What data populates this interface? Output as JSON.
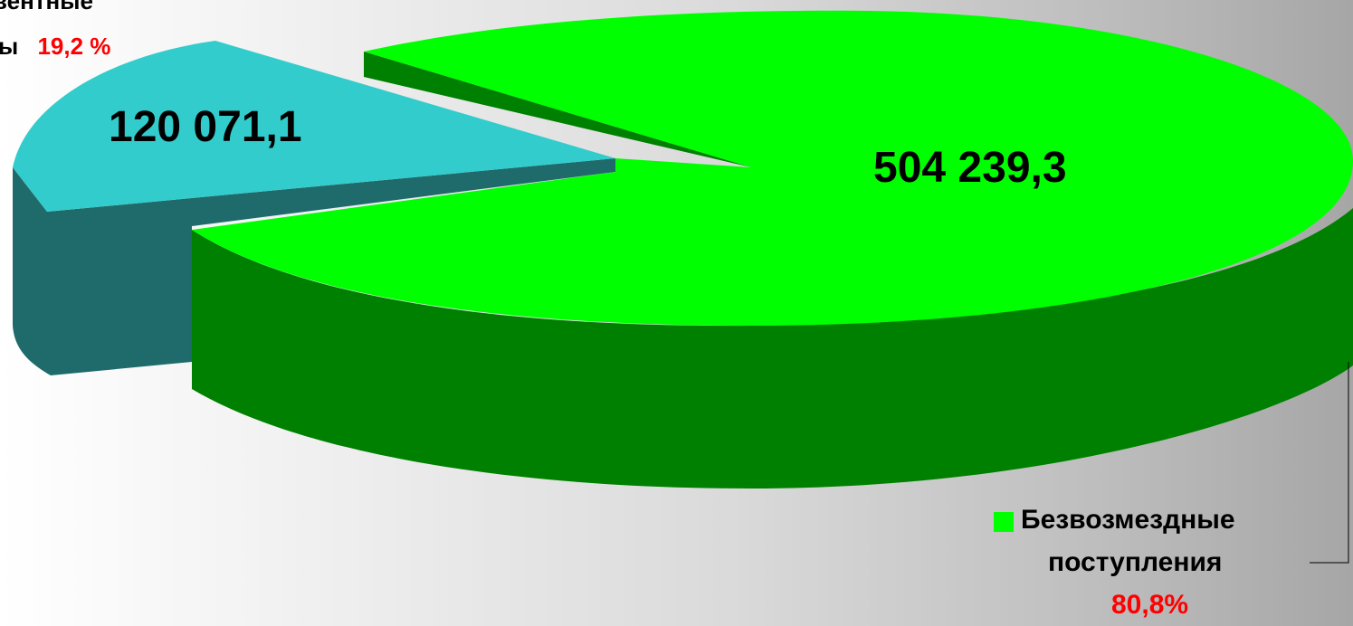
{
  "chart_data": {
    "type": "pie",
    "style": "3d-exploded",
    "categories": [
      "Безвозмездные поступления",
      "…ые …ы"
    ],
    "values": [
      504239.3,
      120071.1
    ],
    "value_labels": [
      "504 239,3",
      "120 071,1"
    ],
    "percent_labels": [
      "80,8%",
      "19,2 %"
    ],
    "colors": {
      "green_top": "#00ff00",
      "green_side": "#008000",
      "teal_top": "#33cccc",
      "teal_side": "#1f6b6b"
    }
  },
  "labels": {
    "green_value": "504 239,3",
    "teal_value": "120 071,1",
    "green_category_line1": "Безвозмездные",
    "green_category_line2": "поступления",
    "green_percent": "80,8%",
    "teal_category_line1": "вентные",
    "teal_category_line2": "ы",
    "teal_percent": "19,2 %"
  }
}
